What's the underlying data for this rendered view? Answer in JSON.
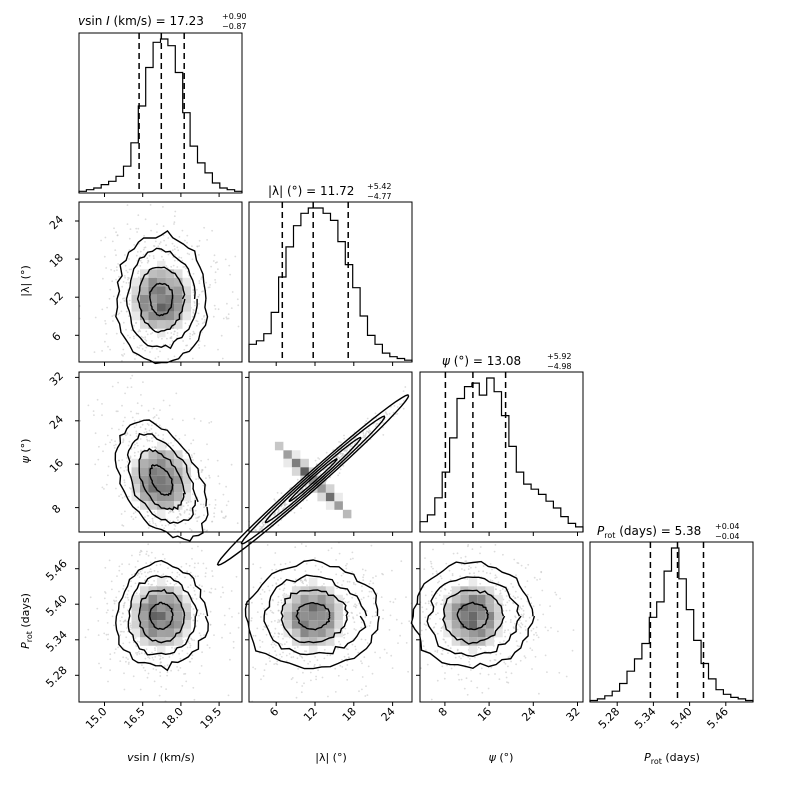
{
  "chart_data": {
    "type": "corner",
    "parameters": [
      {
        "id": "vsini",
        "label": "vsin I (km/s)",
        "title": "vsin I (km/s) = 17.23",
        "median": 17.23,
        "err_plus": "+0.90",
        "err_minus": "−0.87",
        "quantiles": [
          16.36,
          17.23,
          18.13
        ],
        "range": [
          14.0,
          20.4
        ],
        "ticks": [
          15.0,
          16.5,
          18.0,
          19.5
        ],
        "tick_labels": [
          "15.0",
          "16.5",
          "18.0",
          "19.5"
        ],
        "histogram": [
          1,
          2,
          3,
          5,
          7,
          10,
          16,
          30,
          52,
          75,
          90,
          92,
          88,
          72,
          48,
          28,
          18,
          12,
          6,
          3,
          2,
          1
        ]
      },
      {
        "id": "lambda",
        "label": "|λ| (°)",
        "title": "|λ| (°) = 11.72",
        "median": 11.72,
        "err_plus": "+5.42",
        "err_minus": "−4.77",
        "quantiles": [
          6.95,
          11.72,
          17.14
        ],
        "range": [
          1.8,
          27.0
        ],
        "ticks": [
          6,
          12,
          18,
          24
        ],
        "tick_labels": [
          "6",
          "12",
          "18",
          "24"
        ],
        "histogram": [
          10,
          12,
          16,
          28,
          48,
          65,
          77,
          84,
          87,
          87,
          84,
          80,
          68,
          55,
          42,
          26,
          15,
          10,
          5,
          3,
          2,
          1
        ]
      },
      {
        "id": "psi",
        "label": "ψ (°)",
        "title": "ψ (°) = 13.08",
        "median": 13.08,
        "err_plus": "+5.92",
        "err_minus": "−4.98",
        "quantiles": [
          8.1,
          13.08,
          19.0
        ],
        "range": [
          3.5,
          33.0
        ],
        "ticks": [
          8,
          16,
          24,
          32
        ],
        "tick_labels": [
          "8",
          "16",
          "24",
          "32"
        ],
        "histogram": [
          6,
          10,
          20,
          35,
          55,
          78,
          85,
          87,
          80,
          90,
          82,
          68,
          50,
          35,
          28,
          25,
          22,
          18,
          14,
          9,
          5,
          3
        ]
      },
      {
        "id": "prot",
        "label": "P_rot (days)",
        "title": "P_rot (days) = 5.38",
        "median": 5.38,
        "err_plus": "+0.04",
        "err_minus": "−0.04",
        "quantiles": [
          5.335,
          5.38,
          5.423
        ],
        "range": [
          5.235,
          5.505
        ],
        "ticks": [
          5.28,
          5.34,
          5.4,
          5.46
        ],
        "tick_labels": [
          "5.28",
          "5.34",
          "5.40",
          "5.46"
        ],
        "histogram": [
          1,
          2,
          4,
          7,
          12,
          20,
          28,
          38,
          55,
          65,
          85,
          100,
          80,
          60,
          40,
          25,
          15,
          8,
          5,
          3,
          2,
          1
        ]
      }
    ],
    "correlations": {
      "vsini-lambda": 0.0,
      "vsini-psi": -0.45,
      "lambda-psi": 0.985,
      "vsini-prot": 0.0,
      "lambda-prot": 0.0,
      "psi-prot": 0.0
    }
  },
  "axis_labels": {
    "vsini_v": "v",
    "vsini_sin": "sin ",
    "vsini_I": "I",
    "vsini_units": " (km/s)",
    "lambda": "|λ| (°)",
    "psi_sym": "ψ",
    "psi_units": " (°)",
    "prot_P": "P",
    "prot_sub": "rot",
    "prot_units": " (days)"
  },
  "titles": {
    "t0_eq": " = 17.23",
    "t0_plus": "+0.90",
    "t0_minus": "−0.87",
    "t1_main": "|λ| (°) = 11.72",
    "t1_plus": "+5.42",
    "t1_minus": "−4.77",
    "t2_eq": " (°) = 13.08",
    "t2_plus": "+5.92",
    "t2_minus": "−4.98",
    "t3_eq": " (days) = 5.38",
    "t3_plus": "+0.04",
    "t3_minus": "−0.04"
  }
}
